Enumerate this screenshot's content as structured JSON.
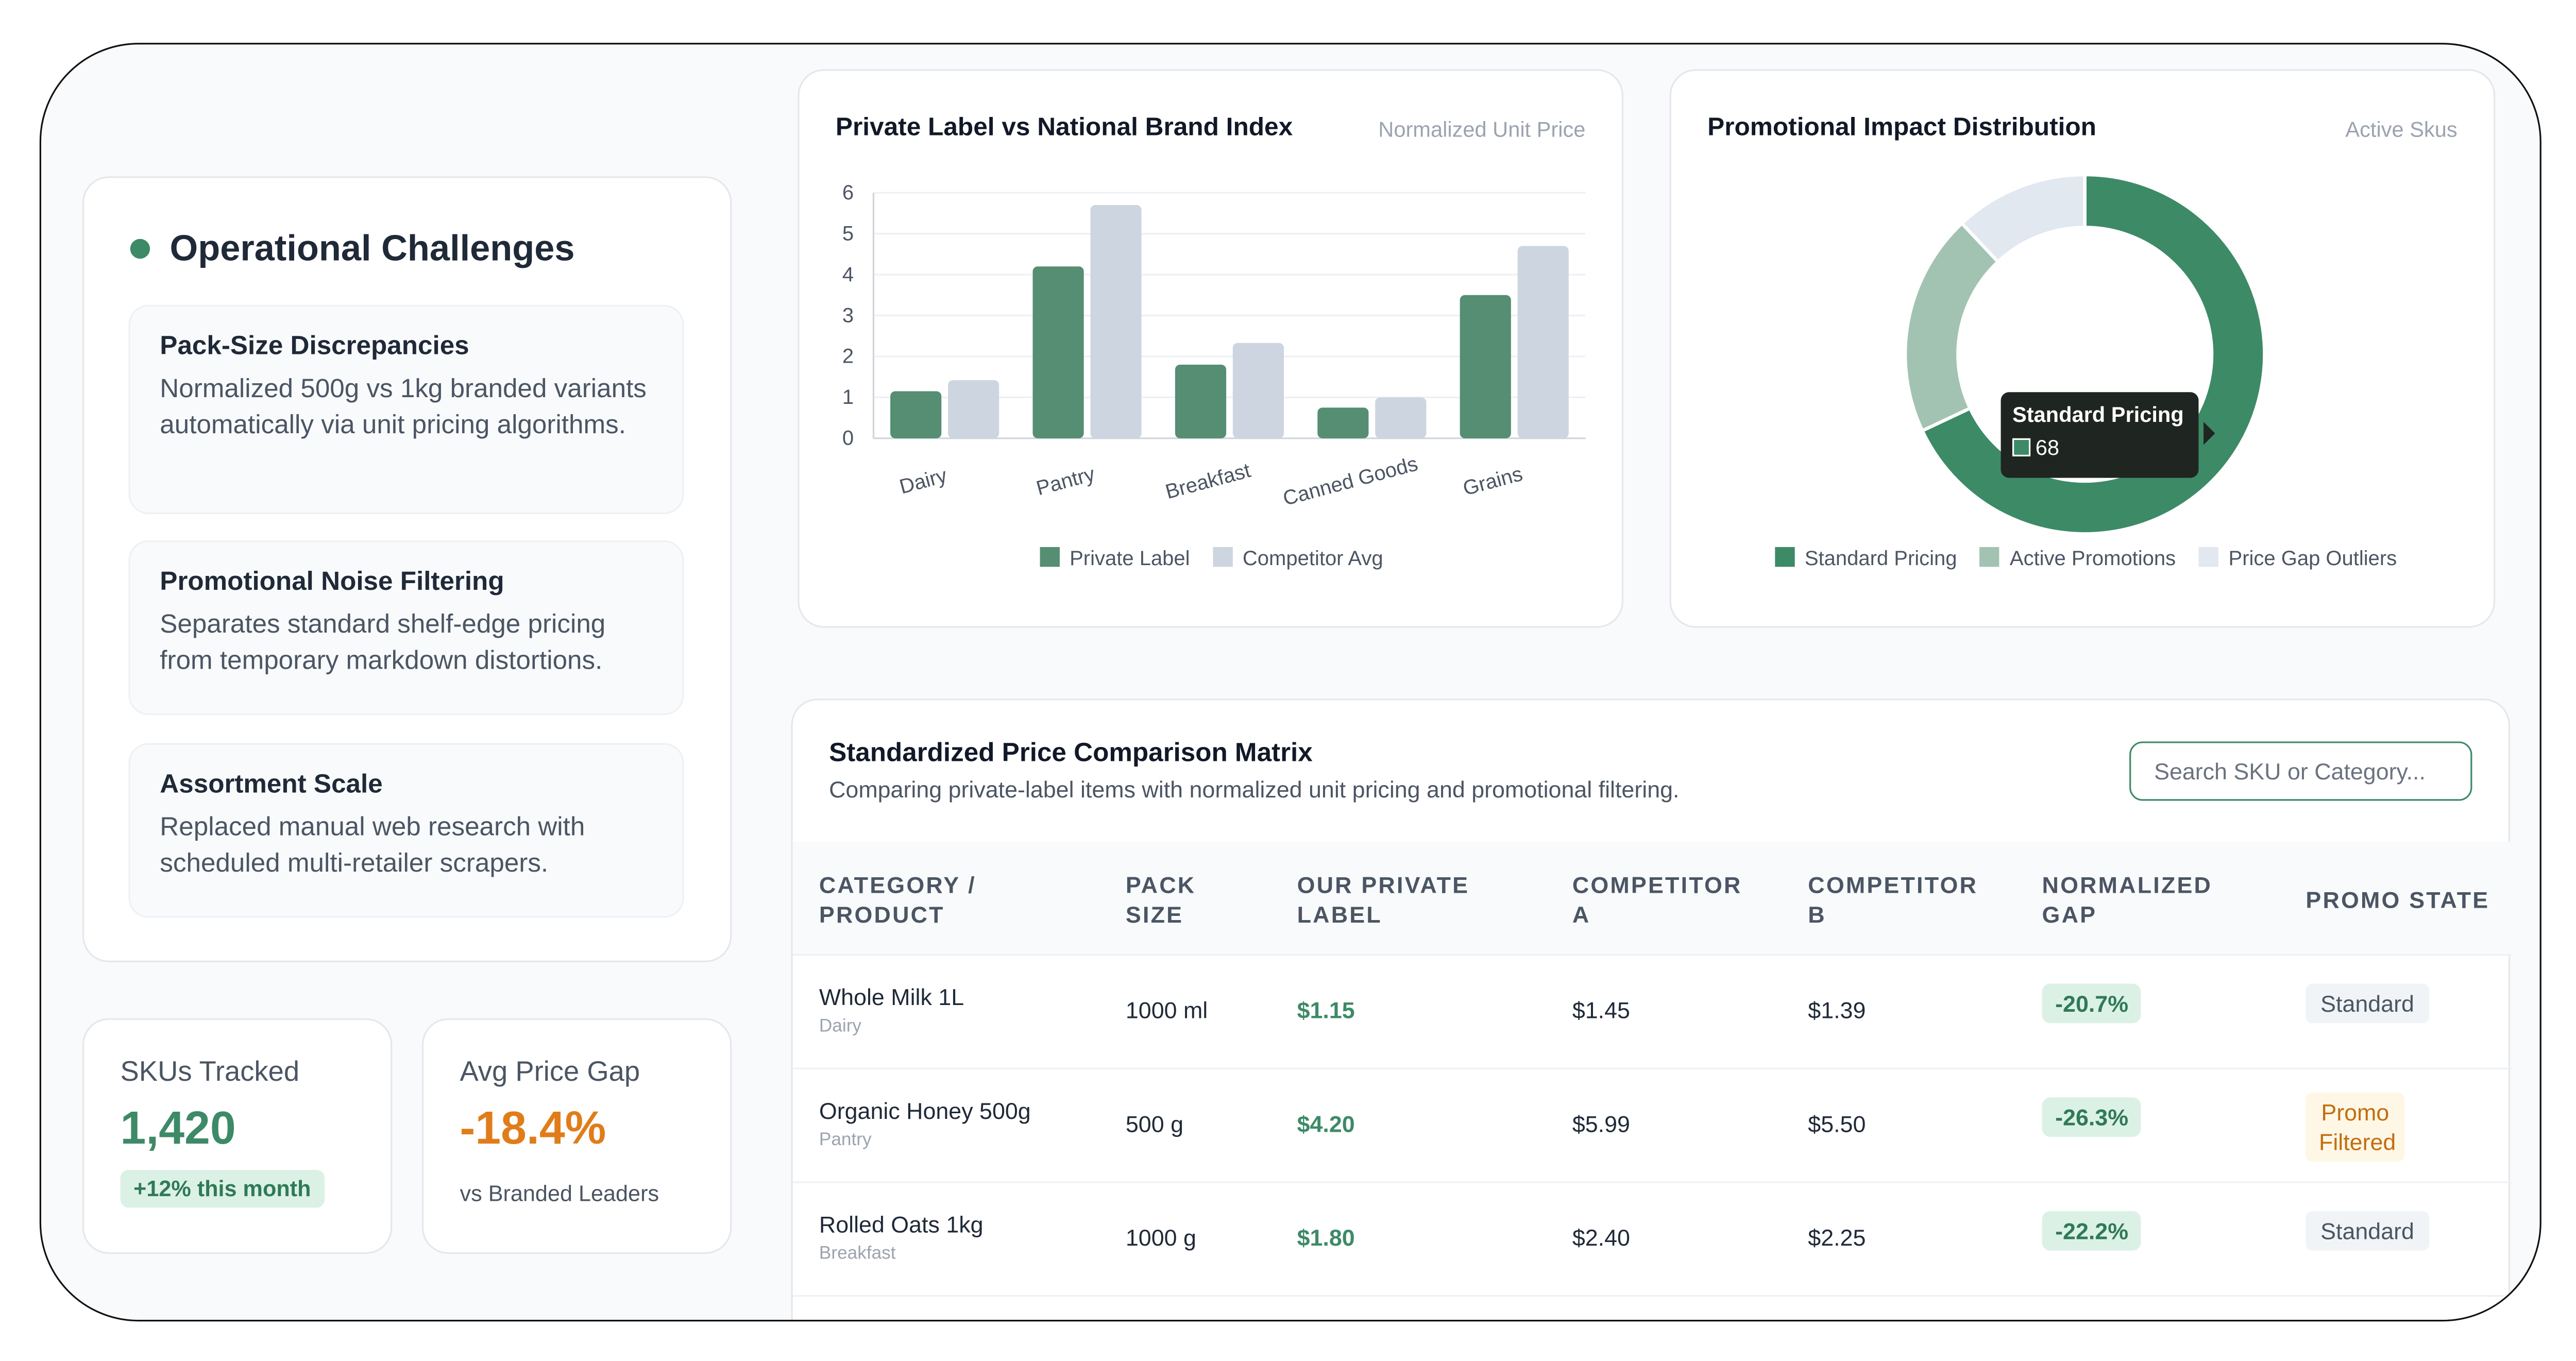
{
  "challenges": {
    "title": "Operational Challenges",
    "items": [
      {
        "title": "Pack-Size Discrepancies",
        "desc": "Normalized 500g vs 1kg branded variants automatically via unit pricing algorithms."
      },
      {
        "title": "Promotional Noise Filtering",
        "desc": "Separates standard shelf-edge pricing from temporary markdown distortions."
      },
      {
        "title": "Assortment Scale",
        "desc": "Replaced manual web research with scheduled multi-retailer scrapers."
      }
    ]
  },
  "stats": {
    "skus": {
      "label": "SKUs Tracked",
      "value": "1,420",
      "sub": "+12% this month"
    },
    "gap": {
      "label": "Avg Price Gap",
      "value": "-18.4%",
      "sub": "vs Branded Leaders"
    }
  },
  "bar_card": {
    "title": "Private Label vs National Brand Index",
    "subtitle": "Normalized Unit Price"
  },
  "donut_card": {
    "title": "Promotional Impact Distribution",
    "subtitle": "Active Skus",
    "tooltip_label": "Standard Pricing",
    "tooltip_value": "68"
  },
  "chart_data": [
    {
      "type": "bar",
      "categories": [
        "Dairy",
        "Pantry",
        "Breakfast",
        "Canned Goods",
        "Grains"
      ],
      "series": [
        {
          "name": "Private Label",
          "values": [
            1.15,
            4.2,
            1.8,
            0.75,
            3.5
          ],
          "color": "#558e73"
        },
        {
          "name": "Competitor Avg",
          "values": [
            1.42,
            5.7,
            2.33,
            1.0,
            4.7
          ],
          "color": "#cdd5e0"
        }
      ],
      "ylim": [
        0,
        6
      ],
      "yticks": [
        "0",
        "1",
        "2",
        "3",
        "4",
        "5",
        "6"
      ],
      "grid": true,
      "legend": "bottom"
    },
    {
      "type": "pie",
      "labels": [
        "Standard Pricing",
        "Active Promotions",
        "Price Gap Outliers"
      ],
      "values": [
        68,
        20,
        12
      ],
      "colors": [
        "#3d8a67",
        "#a3c3b2",
        "#e2e8f0"
      ],
      "legend": "bottom"
    }
  ],
  "table": {
    "title": "Standardized Price Comparison Matrix",
    "subtitle": "Comparing private-label items with normalized unit pricing and promotional filtering.",
    "search_placeholder": "Search SKU or Category...",
    "headers": {
      "product": [
        "CATEGORY /",
        "PRODUCT"
      ],
      "pack": [
        "PACK",
        "SIZE"
      ],
      "ours": [
        "OUR PRIVATE",
        "LABEL"
      ],
      "compA": [
        "COMPETITOR",
        "A"
      ],
      "compB": [
        "COMPETITOR",
        "B"
      ],
      "gap": [
        "NORMALIZED",
        "GAP"
      ],
      "promo": [
        "PROMO STATE",
        ""
      ]
    },
    "rows": [
      {
        "name": "Whole Milk 1L",
        "category": "Dairy",
        "pack": "1000 ml",
        "ours": "$1.15",
        "compA": "$1.45",
        "compB": "$1.39",
        "gap": "-20.7%",
        "promo": "Standard"
      },
      {
        "name": "Organic Honey 500g",
        "category": "Pantry",
        "pack": "500 g",
        "ours": "$4.20",
        "compA": "$5.99",
        "compB": "$5.50",
        "gap": "-26.3%",
        "promo": "Promo Filtered"
      },
      {
        "name": "Rolled Oats 1kg",
        "category": "Breakfast",
        "pack": "1000 g",
        "ours": "$1.80",
        "compA": "$2.40",
        "compB": "$2.25",
        "gap": "-22.2%",
        "promo": "Standard"
      }
    ]
  }
}
